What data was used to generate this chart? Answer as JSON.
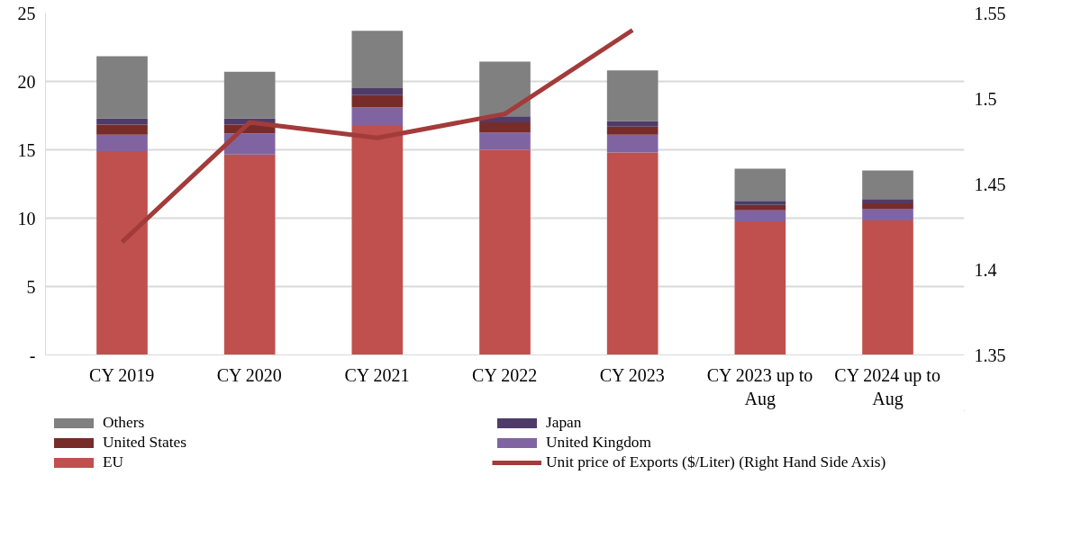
{
  "chart_data": {
    "type": "bar",
    "stacked": true,
    "categories": [
      "CY 2019",
      "CY 2020",
      "CY 2021",
      "CY 2022",
      "CY 2023",
      "CY 2023 up to Aug",
      "CY 2024 up to Aug"
    ],
    "series": [
      {
        "name": "EU",
        "color": "#c0504d",
        "values": [
          14.9,
          14.65,
          16.75,
          15.0,
          14.8,
          9.77,
          9.84
        ]
      },
      {
        "name": "United Kingdom",
        "color": "#8064a2",
        "values": [
          1.2,
          1.55,
          1.35,
          1.25,
          1.3,
          0.8,
          0.85
        ]
      },
      {
        "name": "United States",
        "color": "#772c2a",
        "values": [
          0.75,
          0.65,
          0.9,
          0.75,
          0.6,
          0.4,
          0.4
        ]
      },
      {
        "name": "Japan",
        "color": "#4f3b69",
        "values": [
          0.45,
          0.45,
          0.5,
          0.45,
          0.4,
          0.3,
          0.3
        ]
      },
      {
        "name": "Others",
        "color": "#808080",
        "values": [
          4.55,
          3.4,
          4.2,
          4.0,
          3.7,
          2.35,
          2.1
        ]
      },
      {
        "name": "Unit price of Exports ($/Liter) (Right Hand Side Axis)",
        "type": "line",
        "axis": "y2",
        "color": "#a33b3a",
        "values": [
          1.416,
          1.486,
          1.477,
          1.491,
          1.54,
          null,
          null
        ]
      }
    ],
    "ylim": [
      0,
      25
    ],
    "yticks": [
      {
        "value": 0,
        "label": "-"
      },
      5,
      10,
      15,
      20,
      25
    ],
    "y2lim": [
      1.35,
      1.55
    ],
    "y2ticks": [
      1.35,
      1.4,
      1.45,
      1.5,
      1.55
    ],
    "grid": "y",
    "legend": "bottom",
    "line_style": "solid",
    "marker": "none"
  }
}
